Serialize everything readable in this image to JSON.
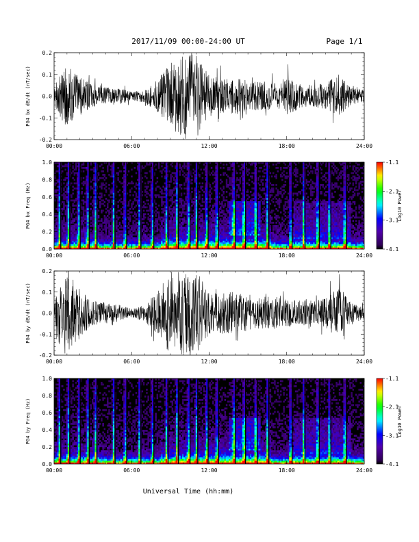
{
  "header": {
    "title": "2017/11/09  00:00-24:00 UT",
    "page": "Page 1/1"
  },
  "footer": {
    "xlabel": "Universal Time (hh:mm)"
  },
  "chart_data": [
    {
      "type": "line",
      "ylabel": "PG4 bx dB/dt (nT/sec)",
      "xlim": [
        "00:00",
        "24:00"
      ],
      "xticks": [
        "00:00",
        "06:00",
        "12:00",
        "18:00",
        "24:00"
      ],
      "ylim": [
        -0.2,
        0.2
      ],
      "yticks": [
        "0.2",
        "0.1",
        "0.0",
        "-0.1",
        "-0.2"
      ],
      "series": [
        {
          "x_hours": [
            0,
            1,
            2,
            3,
            4,
            5,
            6,
            7,
            8,
            9,
            10,
            11,
            12,
            13,
            14,
            15,
            16,
            17,
            18,
            19,
            20,
            21,
            22,
            23,
            24
          ],
          "envelope_amplitude": [
            0.05,
            0.15,
            0.09,
            0.05,
            0.04,
            0.04,
            0.02,
            0.03,
            0.08,
            0.15,
            0.2,
            0.2,
            0.1,
            0.08,
            0.09,
            0.07,
            0.07,
            0.06,
            0.09,
            0.06,
            0.05,
            0.06,
            0.1,
            0.04,
            0.03
          ]
        }
      ]
    },
    {
      "type": "heatmap",
      "ylabel": "PG4 bx Freq (Hz)",
      "xlim": [
        "00:00",
        "24:00"
      ],
      "xticks": [
        "00:00",
        "06:00",
        "12:00",
        "18:00",
        "24:00"
      ],
      "ylim": [
        0.0,
        1.0
      ],
      "yticks": [
        "1.0",
        "0.8",
        "0.6",
        "0.4",
        "0.2",
        "0.0"
      ],
      "colorbar": {
        "label": "Log10 Power",
        "range": [
          -4.1,
          -1.1
        ],
        "ticks": [
          "-1.1",
          "-2.1",
          "-3.1",
          "-4.1"
        ]
      },
      "vertical_streak_hours": [
        0.4,
        1.1,
        1.9,
        2.6,
        3.2,
        4.6,
        5.5,
        6.6,
        7.6,
        8.7,
        9.5,
        10.4,
        11.0,
        11.8,
        12.6,
        13.9,
        14.7,
        15.6,
        16.5,
        18.3,
        19.3,
        20.4,
        21.3,
        22.5
      ]
    },
    {
      "type": "line",
      "ylabel": "PG4 by dB/dt (nT/sec)",
      "xlim": [
        "00:00",
        "24:00"
      ],
      "xticks": [
        "00:00",
        "06:00",
        "12:00",
        "18:00",
        "24:00"
      ],
      "ylim": [
        -0.2,
        0.2
      ],
      "yticks": [
        "0.2",
        "0.1",
        "0.0",
        "-0.1",
        "-0.2"
      ],
      "series": [
        {
          "x_hours": [
            0,
            1,
            2,
            3,
            4,
            5,
            6,
            7,
            8,
            9,
            10,
            11,
            12,
            13,
            14,
            15,
            16,
            17,
            18,
            19,
            20,
            21,
            22,
            23,
            24
          ],
          "envelope_amplitude": [
            0.05,
            0.2,
            0.12,
            0.06,
            0.05,
            0.04,
            0.02,
            0.04,
            0.1,
            0.2,
            0.2,
            0.2,
            0.1,
            0.1,
            0.1,
            0.09,
            0.08,
            0.08,
            0.07,
            0.06,
            0.06,
            0.07,
            0.12,
            0.05,
            0.03
          ]
        }
      ]
    },
    {
      "type": "heatmap",
      "ylabel": "PG4 by Freq (Hz)",
      "xlim": [
        "00:00",
        "24:00"
      ],
      "xticks": [
        "00:00",
        "06:00",
        "12:00",
        "18:00",
        "24:00"
      ],
      "ylim": [
        0.0,
        1.0
      ],
      "yticks": [
        "1.0",
        "0.8",
        "0.6",
        "0.4",
        "0.2",
        "0.0"
      ],
      "colorbar": {
        "label": "Log10 Power",
        "range": [
          -4.1,
          -1.1
        ],
        "ticks": [
          "-1.1",
          "-2.1",
          "-3.1",
          "-4.1"
        ]
      },
      "vertical_streak_hours": [
        0.4,
        1.1,
        1.9,
        2.6,
        3.2,
        4.6,
        5.5,
        6.6,
        7.6,
        8.7,
        9.5,
        10.4,
        11.0,
        11.8,
        12.6,
        13.9,
        14.7,
        15.6,
        16.5,
        18.3,
        19.3,
        20.4,
        21.3,
        22.5
      ]
    }
  ]
}
